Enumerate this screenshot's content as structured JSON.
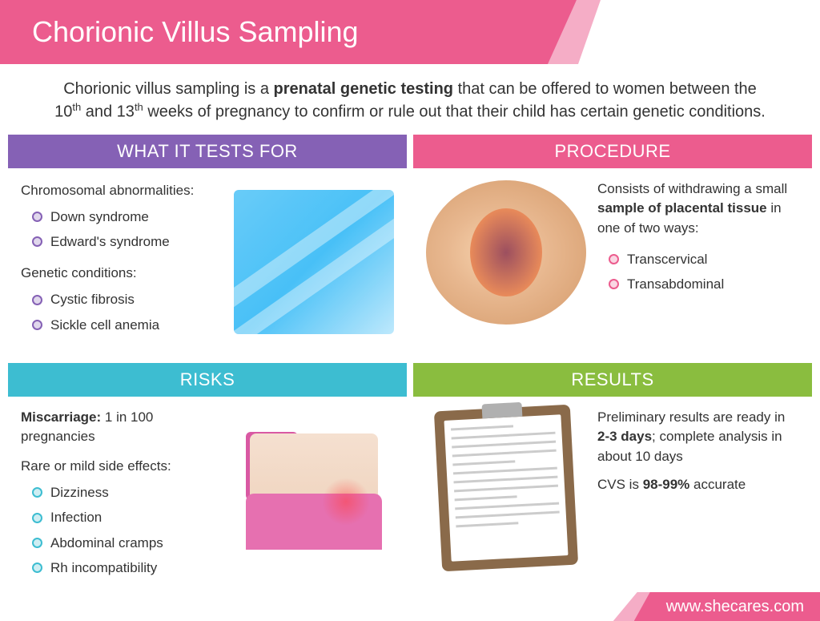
{
  "colors": {
    "pink": "#ec5c8e",
    "purple": "#8561b5",
    "teal": "#3dbdd1",
    "green": "#8abd3f",
    "text": "#333333"
  },
  "header": {
    "title": "Chorionic Villus Sampling"
  },
  "intro": {
    "pre": "Chorionic villus sampling is a ",
    "bold": "prenatal genetic testing",
    "post": " that can be offered to women between the 10",
    "sup1": "th",
    "mid": " and 13",
    "sup2": "th",
    "end": " weeks of pregnancy to confirm or rule out that their child has certain genetic conditions."
  },
  "tests": {
    "header": "WHAT IT TESTS FOR",
    "bullet_color": "#8561b5",
    "section1_label": "Chromosomal abnormalities:",
    "section1_items": [
      "Down syndrome",
      "Edward's syndrome"
    ],
    "section2_label": "Genetic conditions:",
    "section2_items": [
      "Cystic fibrosis",
      "Sickle cell anemia"
    ]
  },
  "procedure": {
    "header": "PROCEDURE",
    "bullet_color": "#ec5c8e",
    "text_pre": "Consists of withdrawing a small ",
    "text_bold": "sample of placental tissue",
    "text_post": " in one of two ways:",
    "items": [
      "Transcervical",
      "Transabdominal"
    ]
  },
  "risks": {
    "header": "RISKS",
    "bullet_color": "#3dbdd1",
    "line1_bold": "Miscarriage:",
    "line1_rest": " 1 in 100 pregnancies",
    "section_label": "Rare or mild side effects:",
    "items": [
      "Dizziness",
      "Infection",
      "Abdominal cramps",
      "Rh incompatibility"
    ]
  },
  "results": {
    "header": "RESULTS",
    "p1_pre": "Preliminary results are ready in ",
    "p1_bold": "2-3 days",
    "p1_post": "; complete analysis in about 10 days",
    "p2_pre": "CVS is ",
    "p2_bold": "98-99%",
    "p2_post": " accurate"
  },
  "footer": {
    "url": "www.shecares.com"
  }
}
